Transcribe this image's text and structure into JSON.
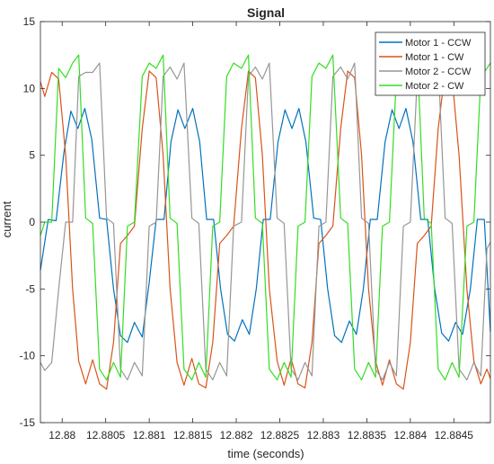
{
  "chart_data": {
    "type": "line",
    "title": "Signal",
    "xlabel": "time (seconds)",
    "ylabel": "current",
    "xlim": [
      12.87975,
      12.88492
    ],
    "ylim": [
      -15,
      15
    ],
    "xticks": [
      12.88,
      12.8805,
      12.881,
      12.8815,
      12.882,
      12.8825,
      12.883,
      12.8835,
      12.884,
      12.8845
    ],
    "xtick_labels": [
      "12.88",
      "12.8805",
      "12.881",
      "12.8815",
      "12.882",
      "12.8825",
      "12.883",
      "12.8835",
      "12.884",
      "12.8845"
    ],
    "yticks": [
      -15,
      -10,
      -5,
      0,
      5,
      10,
      15
    ],
    "ytick_labels": [
      "-15",
      "-10",
      "-5",
      "0",
      "5",
      "10",
      "15"
    ],
    "grid": false,
    "legend_position": "top-right",
    "series": [
      {
        "name": "Motor 1 - CCW",
        "color": "#0072BD",
        "points": [
          [
            12.87975,
            -3.6
          ],
          [
            12.87984,
            0.2
          ],
          [
            12.87993,
            0.1
          ],
          [
            12.88002,
            5.2
          ],
          [
            12.8801,
            8.3
          ],
          [
            12.88018,
            7.0
          ],
          [
            12.88026,
            8.5
          ],
          [
            12.88034,
            6.2
          ],
          [
            12.88043,
            0.3
          ],
          [
            12.88051,
            0.2
          ],
          [
            12.88059,
            -5.0
          ],
          [
            12.88067,
            -8.5
          ],
          [
            12.88075,
            -9.0
          ],
          [
            12.88083,
            -7.5
          ],
          [
            12.88092,
            -8.6
          ],
          [
            12.881,
            -4.5
          ],
          [
            12.88108,
            0.2
          ],
          [
            12.88117,
            0.2
          ],
          [
            12.88125,
            6.0
          ],
          [
            12.88133,
            8.4
          ],
          [
            12.88141,
            7.0
          ],
          [
            12.8815,
            8.5
          ],
          [
            12.88158,
            6.0
          ],
          [
            12.88166,
            0.2
          ],
          [
            12.88174,
            0.2
          ],
          [
            12.88182,
            -5.0
          ],
          [
            12.8819,
            -8.4
          ],
          [
            12.88198,
            -8.9
          ],
          [
            12.88207,
            -7.3
          ],
          [
            12.88215,
            -8.4
          ],
          [
            12.88223,
            -5.0
          ],
          [
            12.88231,
            0.2
          ],
          [
            12.88239,
            0.2
          ],
          [
            12.88248,
            6.0
          ],
          [
            12.88256,
            8.4
          ],
          [
            12.88264,
            7.0
          ],
          [
            12.88272,
            8.5
          ],
          [
            12.8828,
            6.0
          ],
          [
            12.88289,
            0.3
          ],
          [
            12.88297,
            0.2
          ],
          [
            12.88305,
            -5.0
          ],
          [
            12.88313,
            -8.5
          ],
          [
            12.88321,
            -9.0
          ],
          [
            12.8833,
            -7.4
          ],
          [
            12.88338,
            -8.4
          ],
          [
            12.88346,
            -5.0
          ],
          [
            12.88354,
            0.2
          ],
          [
            12.88362,
            0.2
          ],
          [
            12.88371,
            6.0
          ],
          [
            12.88379,
            8.4
          ],
          [
            12.88387,
            7.0
          ],
          [
            12.88395,
            8.5
          ],
          [
            12.88403,
            6.0
          ],
          [
            12.88412,
            0.2
          ],
          [
            12.8842,
            0.2
          ],
          [
            12.88428,
            -5.0
          ],
          [
            12.88436,
            -8.3
          ],
          [
            12.88444,
            -8.9
          ],
          [
            12.88452,
            -7.5
          ],
          [
            12.8846,
            -8.4
          ],
          [
            12.88469,
            -5.0
          ],
          [
            12.88477,
            0.2
          ],
          [
            12.88485,
            0.2
          ],
          [
            12.88492,
            -8.2
          ]
        ]
      },
      {
        "name": "Motor 1 - CW",
        "color": "#D95319",
        "points": [
          [
            12.87975,
            10.5
          ],
          [
            12.8798,
            9.4
          ],
          [
            12.87988,
            11.2
          ],
          [
            12.87996,
            10.7
          ],
          [
            12.88004,
            5.0
          ],
          [
            12.88012,
            -5.0
          ],
          [
            12.88019,
            -10.4
          ],
          [
            12.88027,
            -12.1
          ],
          [
            12.88035,
            -10.3
          ],
          [
            12.88043,
            -12.1
          ],
          [
            12.88051,
            -12.5
          ],
          [
            12.88059,
            -9.0
          ],
          [
            12.88067,
            -1.6
          ],
          [
            12.88075,
            -1.0
          ],
          [
            12.88083,
            -0.3
          ],
          [
            12.88092,
            7.0
          ],
          [
            12.881,
            11.3
          ],
          [
            12.88108,
            10.8
          ],
          [
            12.88116,
            5.0
          ],
          [
            12.88124,
            -5.0
          ],
          [
            12.88132,
            -10.5
          ],
          [
            12.8814,
            -12.2
          ],
          [
            12.88149,
            -10.2
          ],
          [
            12.88157,
            -12.1
          ],
          [
            12.88165,
            -12.4
          ],
          [
            12.88173,
            -9.0
          ],
          [
            12.88181,
            -1.6
          ],
          [
            12.88189,
            -1.0
          ],
          [
            12.88197,
            -0.3
          ],
          [
            12.88206,
            7.0
          ],
          [
            12.88214,
            11.3
          ],
          [
            12.88222,
            10.8
          ],
          [
            12.8823,
            5.0
          ],
          [
            12.88238,
            -5.0
          ],
          [
            12.88247,
            -10.4
          ],
          [
            12.88255,
            -12.2
          ],
          [
            12.88263,
            -10.2
          ],
          [
            12.88271,
            -12.1
          ],
          [
            12.88279,
            -12.4
          ],
          [
            12.88287,
            -9.0
          ],
          [
            12.88295,
            -1.6
          ],
          [
            12.88303,
            -1.0
          ],
          [
            12.88311,
            -0.3
          ],
          [
            12.8832,
            7.0
          ],
          [
            12.88328,
            11.3
          ],
          [
            12.88336,
            10.8
          ],
          [
            12.88344,
            5.0
          ],
          [
            12.88352,
            -5.0
          ],
          [
            12.8836,
            -10.4
          ],
          [
            12.88368,
            -12.2
          ],
          [
            12.88376,
            -10.3
          ],
          [
            12.88384,
            -12.1
          ],
          [
            12.88392,
            -12.5
          ],
          [
            12.884,
            -9.0
          ],
          [
            12.88408,
            -1.6
          ],
          [
            12.88416,
            -1.0
          ],
          [
            12.88424,
            -0.3
          ],
          [
            12.88432,
            7.0
          ],
          [
            12.8844,
            11.3
          ],
          [
            12.88448,
            10.8
          ],
          [
            12.88456,
            5.0
          ],
          [
            12.88465,
            -5.0
          ],
          [
            12.88473,
            -10.4
          ],
          [
            12.88481,
            -12.1
          ],
          [
            12.88488,
            -11.0
          ],
          [
            12.88492,
            -11.7
          ]
        ]
      },
      {
        "name": "Motor 2 - CCW",
        "color": "#969696",
        "points": [
          [
            12.87975,
            -10.5
          ],
          [
            12.8798,
            -11.1
          ],
          [
            12.87988,
            -10.5
          ],
          [
            12.87996,
            -5.0
          ],
          [
            12.88004,
            0.0
          ],
          [
            12.88012,
            0.0
          ],
          [
            12.88019,
            10.9
          ],
          [
            12.88027,
            11.2
          ],
          [
            12.88035,
            11.2
          ],
          [
            12.88043,
            11.9
          ],
          [
            12.88051,
            0.3
          ],
          [
            12.88059,
            -0.1
          ],
          [
            12.88067,
            -11.0
          ],
          [
            12.88075,
            -11.8
          ],
          [
            12.88083,
            -10.5
          ],
          [
            12.88092,
            -11.5
          ],
          [
            12.881,
            -0.3
          ],
          [
            12.88108,
            0.0
          ],
          [
            12.88116,
            10.9
          ],
          [
            12.88124,
            11.6
          ],
          [
            12.88132,
            10.7
          ],
          [
            12.8814,
            11.9
          ],
          [
            12.88149,
            0.3
          ],
          [
            12.88157,
            -0.1
          ],
          [
            12.88165,
            -11.0
          ],
          [
            12.88173,
            -11.8
          ],
          [
            12.88181,
            -10.5
          ],
          [
            12.88189,
            -11.5
          ],
          [
            12.88197,
            -0.3
          ],
          [
            12.88206,
            0.0
          ],
          [
            12.88214,
            10.9
          ],
          [
            12.88222,
            11.6
          ],
          [
            12.8823,
            10.7
          ],
          [
            12.88238,
            11.9
          ],
          [
            12.88247,
            0.3
          ],
          [
            12.88255,
            -0.1
          ],
          [
            12.88263,
            -11.0
          ],
          [
            12.88271,
            -11.8
          ],
          [
            12.88279,
            -10.5
          ],
          [
            12.88287,
            -11.5
          ],
          [
            12.88295,
            -0.3
          ],
          [
            12.88303,
            0.0
          ],
          [
            12.88311,
            10.9
          ],
          [
            12.8832,
            11.6
          ],
          [
            12.88328,
            10.7
          ],
          [
            12.88336,
            11.9
          ],
          [
            12.88344,
            0.3
          ],
          [
            12.88352,
            -0.1
          ],
          [
            12.8836,
            -11.0
          ],
          [
            12.88368,
            -11.8
          ],
          [
            12.88376,
            -10.5
          ],
          [
            12.88384,
            -11.5
          ],
          [
            12.88392,
            -0.3
          ],
          [
            12.884,
            0.0
          ],
          [
            12.88408,
            10.9
          ],
          [
            12.88416,
            11.6
          ],
          [
            12.88424,
            10.7
          ],
          [
            12.88432,
            11.9
          ],
          [
            12.8844,
            0.3
          ],
          [
            12.88448,
            -0.1
          ],
          [
            12.88456,
            -11.0
          ],
          [
            12.88465,
            -11.8
          ],
          [
            12.88473,
            -10.5
          ],
          [
            12.88481,
            -11.5
          ],
          [
            12.88488,
            -2.0
          ],
          [
            12.88492,
            -1.5
          ]
        ]
      },
      {
        "name": "Motor 2 - CW",
        "color": "#33DD22",
        "points": [
          [
            12.87975,
            -1.0
          ],
          [
            12.8798,
            0.0
          ],
          [
            12.87988,
            0.0
          ],
          [
            12.87996,
            11.5
          ],
          [
            12.88004,
            10.8
          ],
          [
            12.88012,
            11.9
          ],
          [
            12.88019,
            12.5
          ],
          [
            12.88027,
            0.3
          ],
          [
            12.88035,
            -0.1
          ],
          [
            12.88043,
            -11.0
          ],
          [
            12.88051,
            -11.8
          ],
          [
            12.88059,
            -10.5
          ],
          [
            12.88067,
            -11.6
          ],
          [
            12.88075,
            -0.3
          ],
          [
            12.88083,
            0.0
          ],
          [
            12.88092,
            10.9
          ],
          [
            12.881,
            11.9
          ],
          [
            12.88108,
            11.5
          ],
          [
            12.88116,
            12.5
          ],
          [
            12.88124,
            0.3
          ],
          [
            12.88132,
            -0.1
          ],
          [
            12.8814,
            -11.0
          ],
          [
            12.88149,
            -11.8
          ],
          [
            12.88157,
            -10.5
          ],
          [
            12.88165,
            -11.6
          ],
          [
            12.88173,
            -0.3
          ],
          [
            12.88181,
            0.0
          ],
          [
            12.88189,
            10.9
          ],
          [
            12.88197,
            11.9
          ],
          [
            12.88206,
            11.5
          ],
          [
            12.88214,
            12.5
          ],
          [
            12.88222,
            0.3
          ],
          [
            12.8823,
            -0.1
          ],
          [
            12.88238,
            -11.0
          ],
          [
            12.88247,
            -11.8
          ],
          [
            12.88255,
            -10.5
          ],
          [
            12.88263,
            -11.6
          ],
          [
            12.88271,
            -0.3
          ],
          [
            12.88279,
            0.0
          ],
          [
            12.88287,
            10.9
          ],
          [
            12.88295,
            11.9
          ],
          [
            12.88303,
            11.5
          ],
          [
            12.88311,
            12.5
          ],
          [
            12.8832,
            0.3
          ],
          [
            12.88328,
            -0.1
          ],
          [
            12.88336,
            -11.0
          ],
          [
            12.88344,
            -11.8
          ],
          [
            12.88352,
            -10.5
          ],
          [
            12.8836,
            -11.6
          ],
          [
            12.88368,
            -0.3
          ],
          [
            12.88376,
            0.0
          ],
          [
            12.88384,
            10.9
          ],
          [
            12.88392,
            11.9
          ],
          [
            12.884,
            11.5
          ],
          [
            12.88408,
            12.5
          ],
          [
            12.88416,
            0.3
          ],
          [
            12.88424,
            -0.1
          ],
          [
            12.88432,
            -11.0
          ],
          [
            12.8844,
            -11.8
          ],
          [
            12.88448,
            -10.5
          ],
          [
            12.88456,
            -11.6
          ],
          [
            12.88465,
            -0.3
          ],
          [
            12.88473,
            0.0
          ],
          [
            12.88481,
            10.9
          ],
          [
            12.88488,
            11.5
          ],
          [
            12.88492,
            11.9
          ]
        ]
      }
    ]
  }
}
